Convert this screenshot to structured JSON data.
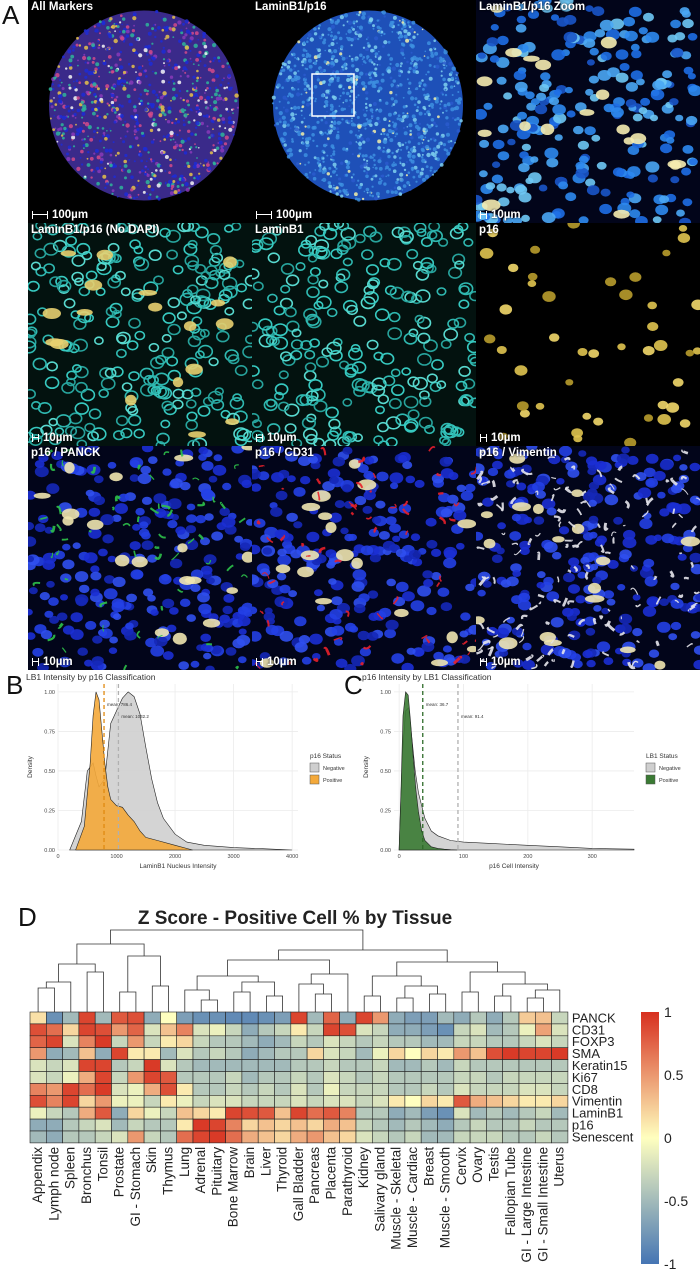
{
  "panel_letters": {
    "a": "A",
    "b": "B",
    "c": "C",
    "d": "D"
  },
  "panel_a": {
    "tiles": [
      {
        "title": "All Markers",
        "scale": "100µm",
        "style": "allmarkers"
      },
      {
        "title": "LaminB1/p16",
        "scale": "100µm",
        "style": "laminoverview"
      },
      {
        "title": "LaminB1/p16 Zoom",
        "scale": "10µm",
        "style": "laminzoom"
      },
      {
        "title": "LaminB1/p16 (No DAPI)",
        "scale": "10µm",
        "style": "nodapi"
      },
      {
        "title": "LaminB1",
        "scale": "10µm",
        "style": "laminb1"
      },
      {
        "title": "p16",
        "scale": "10µm",
        "style": "p16"
      },
      {
        "title": "p16 / PANCK",
        "scale": "10µm",
        "style": "panck"
      },
      {
        "title": "p16 / CD31",
        "scale": "10µm",
        "style": "cd31"
      },
      {
        "title": "p16 / Vimentin",
        "scale": "10µm",
        "style": "vimentin"
      }
    ]
  },
  "panel_b": {
    "chart_data": {
      "type": "area",
      "title": "LB1 Intensity by p16 Classification",
      "xlabel": "LaminB1 Nucleus Intensity",
      "ylabel": "Density",
      "xlim": [
        0,
        4100
      ],
      "ylim": [
        0,
        1.05
      ],
      "xticks": [
        0,
        1000,
        2000,
        3000,
        4000
      ],
      "yticks": [
        0.0,
        0.25,
        0.5,
        0.75,
        1.0
      ],
      "legend_title": "p16 Status",
      "legend_position": "right",
      "series": [
        {
          "name": "Negative",
          "color": "#cfcfcf",
          "x": [
            200,
            400,
            500,
            600,
            650,
            700,
            800,
            900,
            1000,
            1100,
            1200,
            1300,
            1400,
            1500,
            1600,
            1700,
            1800,
            2000,
            2200,
            2500,
            3000,
            3500,
            4000
          ],
          "y": [
            0.0,
            0.18,
            0.5,
            0.55,
            0.47,
            0.4,
            0.45,
            0.8,
            0.88,
            0.96,
            1.0,
            0.97,
            0.86,
            0.65,
            0.45,
            0.3,
            0.2,
            0.1,
            0.05,
            0.03,
            0.015,
            0.008,
            0.0
          ]
        },
        {
          "name": "Positive",
          "color": "#f4a93a",
          "x": [
            300,
            450,
            550,
            600,
            650,
            700,
            750,
            800,
            850,
            900,
            1000,
            1100,
            1200,
            1300,
            1400,
            1500,
            1700,
            2000,
            2300
          ],
          "y": [
            0.0,
            0.15,
            0.55,
            0.85,
            1.0,
            0.95,
            0.75,
            0.55,
            0.4,
            0.32,
            0.28,
            0.27,
            0.22,
            0.18,
            0.12,
            0.08,
            0.06,
            0.03,
            0.0
          ]
        }
      ],
      "vlines": [
        {
          "x": 786.4,
          "label": "mean: 786.4",
          "color": "#e08a10"
        },
        {
          "x": 1032.2,
          "label": "mean: 1032.2",
          "color": "#b0b0b0"
        }
      ]
    }
  },
  "panel_c": {
    "chart_data": {
      "type": "area",
      "title": "p16 Intensity by LB1 Classification",
      "xlabel": "p16 Cell Intensity",
      "ylabel": "Density",
      "xlim": [
        -8,
        365
      ],
      "ylim": [
        0,
        1.05
      ],
      "xticks": [
        0,
        100,
        200,
        300
      ],
      "yticks": [
        0.0,
        0.25,
        0.5,
        0.75,
        1.0
      ],
      "legend_title": "LB1 Status",
      "legend_position": "right",
      "series": [
        {
          "name": "Negative",
          "color": "#cfcfcf",
          "x": [
            0,
            5,
            10,
            15,
            20,
            25,
            30,
            40,
            50,
            60,
            80,
            100,
            150,
            200,
            250,
            300,
            365
          ],
          "y": [
            0.0,
            0.6,
            0.88,
            0.9,
            0.7,
            0.5,
            0.36,
            0.2,
            0.12,
            0.09,
            0.06,
            0.05,
            0.04,
            0.03,
            0.02,
            0.01,
            0.005
          ]
        },
        {
          "name": "Positive",
          "color": "#3a7a33",
          "x": [
            0,
            3,
            6,
            10,
            14,
            18,
            22,
            26,
            30,
            35,
            40,
            50,
            60,
            70,
            80,
            90
          ],
          "y": [
            0.0,
            0.4,
            0.85,
            1.0,
            0.98,
            0.8,
            0.58,
            0.38,
            0.24,
            0.12,
            0.06,
            0.02,
            0.01,
            0.005,
            0.002,
            0.0
          ]
        }
      ],
      "vlines": [
        {
          "x": 36.7,
          "label": "mean: 36.7",
          "color": "#2d6b28"
        },
        {
          "x": 91.4,
          "label": "mean: 91.4",
          "color": "#b0b0b0"
        }
      ]
    }
  },
  "panel_d": {
    "chart_data": {
      "type": "heatmap",
      "title": "Z Score - Positive Cell % by Tissue",
      "columns": [
        "Appendix",
        "Lymph node",
        "Spleen",
        "Bronchus",
        "Tonsil",
        "Prostate",
        "GI - Stomach",
        "Skin",
        "Thymus",
        "Lung",
        "Adrenal",
        "Pituitary",
        "Bone Marrow",
        "Brain",
        "Liver",
        "Thyroid",
        "Gall Bladder",
        "Pancreas",
        "Placenta",
        "Parathyroid",
        "Kidney",
        "Salivary gland",
        "Muscle - Skeletal",
        "Muscle - Cardiac",
        "Breast",
        "Muscle - Smooth",
        "Cervix",
        "Ovary",
        "Testis",
        "Fallopian Tube",
        "GI - Large Intestine",
        "GI - Small Intestine",
        "Uterus"
      ],
      "rows": [
        "PANCK",
        "CD31",
        "FOXP3",
        "SMA",
        "Keratin15",
        "Ki67",
        "CD8",
        "Vimentin",
        "LaminB1",
        "p16",
        "Senescent"
      ],
      "values": [
        [
          0.15,
          -0.8,
          -0.5,
          0.9,
          -0.5,
          0.8,
          0.85,
          -0.6,
          0.0,
          -0.7,
          -0.8,
          -0.8,
          -0.85,
          -0.85,
          -0.8,
          -0.7,
          0.9,
          -0.5,
          0.75,
          -0.6,
          0.9,
          0.5,
          -0.6,
          -0.7,
          -0.7,
          -0.5,
          -0.6,
          -0.4,
          -0.6,
          -0.4,
          0.25,
          0.3,
          -0.3
        ],
        [
          0.85,
          0.7,
          0.2,
          0.9,
          0.85,
          0.5,
          0.75,
          -0.2,
          0.3,
          0.6,
          -0.2,
          -0.1,
          -0.3,
          -0.6,
          -0.4,
          -0.3,
          0.1,
          -0.3,
          0.9,
          0.85,
          -0.2,
          -0.3,
          -0.6,
          -0.6,
          -0.7,
          -0.8,
          -0.3,
          -0.2,
          -0.5,
          -0.4,
          -0.1,
          0.45,
          -0.2
        ],
        [
          0.75,
          0.9,
          -0.2,
          0.6,
          0.95,
          -0.3,
          0.5,
          -0.3,
          0.1,
          0.2,
          -0.3,
          -0.4,
          -0.4,
          -0.5,
          -0.6,
          -0.5,
          -0.3,
          -0.4,
          -0.2,
          -0.3,
          -0.4,
          -0.3,
          -0.4,
          -0.4,
          -0.5,
          -0.5,
          -0.3,
          -0.3,
          -0.4,
          -0.4,
          -0.3,
          -0.2,
          -0.3
        ],
        [
          0.5,
          -0.6,
          -0.5,
          0.3,
          -0.6,
          0.9,
          0.1,
          0.1,
          -0.5,
          -0.2,
          -0.4,
          -0.3,
          -0.4,
          -0.6,
          -0.5,
          -0.4,
          -0.4,
          0.2,
          -0.2,
          -0.3,
          -0.5,
          -0.1,
          0.2,
          0.0,
          0.2,
          0.1,
          0.5,
          0.3,
          0.85,
          0.95,
          0.9,
          0.9,
          0.95
        ],
        [
          -0.2,
          -0.3,
          -0.2,
          0.9,
          0.9,
          -0.4,
          -0.3,
          0.95,
          -0.2,
          -0.4,
          -0.5,
          -0.5,
          -0.5,
          -0.5,
          -0.5,
          -0.5,
          -0.4,
          -0.4,
          -0.3,
          -0.4,
          -0.4,
          -0.3,
          -0.5,
          -0.5,
          -0.4,
          -0.5,
          -0.3,
          -0.4,
          -0.4,
          -0.4,
          -0.4,
          -0.4,
          -0.4
        ],
        [
          -0.2,
          -0.3,
          -0.1,
          0.4,
          0.9,
          -0.3,
          0.5,
          0.9,
          0.8,
          -0.4,
          -0.4,
          -0.4,
          -0.3,
          -0.5,
          -0.4,
          -0.4,
          -0.3,
          -0.4,
          -0.2,
          -0.3,
          -0.4,
          -0.3,
          -0.4,
          -0.4,
          -0.4,
          -0.4,
          -0.3,
          -0.3,
          -0.4,
          -0.3,
          -0.3,
          -0.3,
          -0.3
        ],
        [
          0.6,
          0.5,
          0.9,
          0.7,
          0.95,
          -0.2,
          -0.1,
          0.4,
          0.85,
          0.1,
          -0.4,
          -0.4,
          -0.3,
          -0.4,
          -0.3,
          -0.4,
          -0.2,
          -0.4,
          -0.1,
          -0.3,
          -0.3,
          -0.3,
          -0.4,
          -0.4,
          -0.3,
          -0.4,
          -0.2,
          -0.3,
          -0.3,
          -0.3,
          -0.2,
          -0.2,
          -0.3
        ],
        [
          0.85,
          0.6,
          0.9,
          0.2,
          0.5,
          -0.1,
          -0.1,
          -0.3,
          0.1,
          -0.1,
          -0.3,
          -0.2,
          -0.2,
          -0.3,
          -0.3,
          -0.3,
          -0.2,
          -0.3,
          -0.2,
          -0.2,
          -0.3,
          -0.2,
          0.1,
          0.0,
          0.2,
          0.1,
          0.8,
          0.4,
          0.3,
          0.2,
          0.1,
          0.1,
          0.2
        ],
        [
          -0.1,
          -0.3,
          -0.4,
          0.4,
          0.8,
          -0.6,
          0.2,
          -0.1,
          -0.3,
          0.3,
          0.2,
          0.1,
          0.9,
          0.85,
          0.8,
          0.3,
          0.9,
          0.7,
          0.8,
          0.6,
          -0.4,
          -0.4,
          -0.6,
          -0.5,
          -0.7,
          -0.8,
          -0.2,
          -0.5,
          -0.4,
          -0.5,
          -0.4,
          -0.3,
          -0.5
        ],
        [
          -0.6,
          -0.6,
          -0.4,
          -0.3,
          -0.2,
          -0.5,
          -0.3,
          -0.4,
          -0.4,
          0.1,
          0.95,
          0.9,
          0.6,
          0.2,
          0.3,
          0.2,
          0.3,
          0.2,
          0.4,
          0.3,
          -0.3,
          -0.4,
          -0.5,
          -0.4,
          -0.5,
          -0.6,
          -0.4,
          -0.3,
          -0.4,
          -0.4,
          -0.3,
          -0.4,
          -0.4
        ],
        [
          -0.5,
          -0.6,
          -0.4,
          -0.4,
          -0.3,
          -0.2,
          0.5,
          -0.3,
          -0.4,
          0.7,
          0.9,
          0.95,
          0.7,
          0.4,
          0.3,
          0.2,
          0.4,
          0.5,
          0.3,
          0.2,
          -0.2,
          -0.3,
          -0.4,
          -0.3,
          -0.5,
          -0.5,
          -0.3,
          -0.3,
          -0.3,
          -0.4,
          -0.4,
          -0.3,
          -0.4
        ]
      ],
      "colorbar": {
        "ticks": [
          1,
          0.5,
          0,
          -0.5,
          -1
        ],
        "labels": [
          "1",
          "0.5",
          "0",
          "-0.5",
          "-1"
        ],
        "range": [
          -1,
          1
        ]
      },
      "colors": {
        "high": "#d7301f",
        "mid": "#ffffbf",
        "low": "#4575b4"
      }
    }
  }
}
